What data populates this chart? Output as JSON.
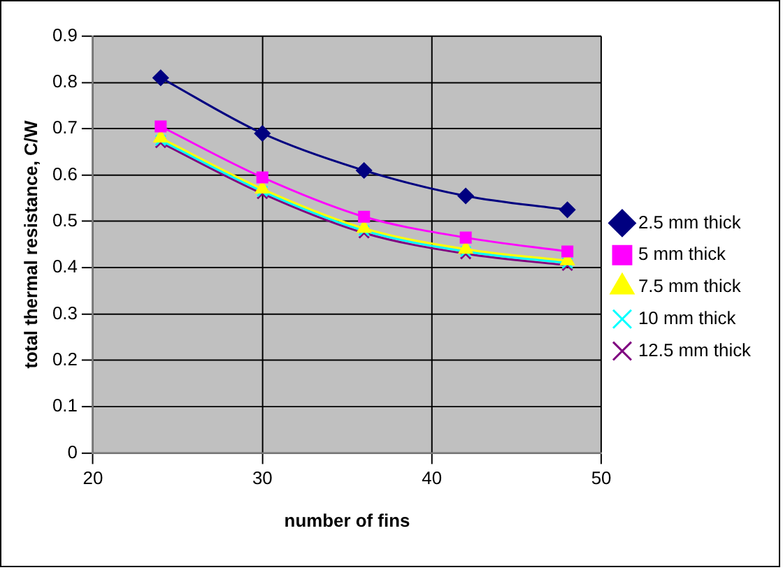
{
  "chart_data": {
    "type": "line",
    "xlabel": "number of fins",
    "ylabel": "total thermal resistance, C/W",
    "x": [
      24,
      30,
      36,
      42,
      48
    ],
    "xlim": [
      20,
      50
    ],
    "xticks": [
      20,
      30,
      40,
      50
    ],
    "ylim": [
      0,
      0.9
    ],
    "yticks": [
      0,
      0.1,
      0.2,
      0.3,
      0.4,
      0.5,
      0.6,
      0.7,
      0.8,
      0.9
    ],
    "grid": true,
    "legend": "right",
    "line_style": "solid",
    "series": [
      {
        "name": "2.5 mm thick",
        "color": "#000080",
        "marker": "diamond",
        "values": [
          0.81,
          0.69,
          0.61,
          0.555,
          0.525
        ]
      },
      {
        "name": "5 mm thick",
        "color": "#ff00ff",
        "marker": "square",
        "values": [
          0.705,
          0.595,
          0.51,
          0.465,
          0.435
        ]
      },
      {
        "name": "7.5 mm thick",
        "color": "#ffff00",
        "marker": "triangle",
        "values": [
          0.68,
          0.57,
          0.485,
          0.44,
          0.415
        ]
      },
      {
        "name": "10 mm thick",
        "color": "#00ffff",
        "marker": "cross",
        "values": [
          0.675,
          0.565,
          0.48,
          0.435,
          0.41
        ]
      },
      {
        "name": "12.5 mm thick",
        "color": "#800080",
        "marker": "cross",
        "values": [
          0.67,
          0.56,
          0.475,
          0.43,
          0.405
        ]
      }
    ]
  }
}
